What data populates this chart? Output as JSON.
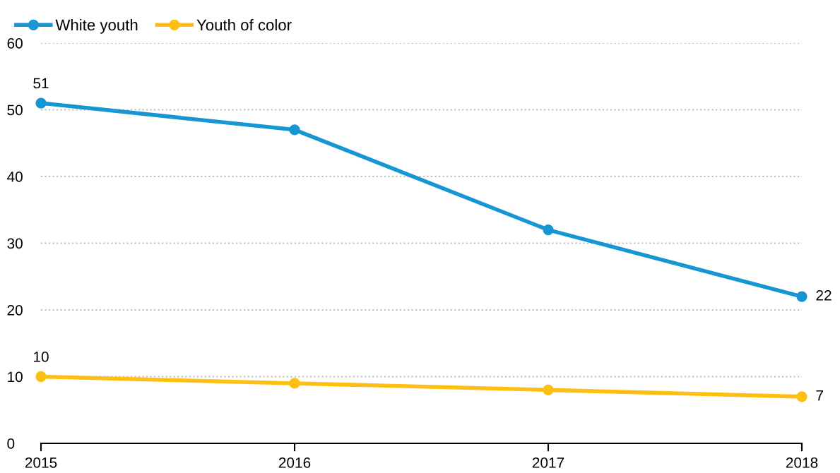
{
  "chart_data": {
    "type": "line",
    "categories": [
      "2015",
      "2016",
      "2017",
      "2018"
    ],
    "series": [
      {
        "name": "White youth",
        "color": "#1696d2",
        "values": [
          51,
          47,
          32,
          22
        ],
        "value_labels": [
          "51",
          null,
          null,
          "22"
        ]
      },
      {
        "name": "Youth of color",
        "color": "#fdbf11",
        "values": [
          10,
          9,
          8,
          7
        ],
        "value_labels": [
          "10",
          null,
          null,
          "7"
        ]
      }
    ],
    "ylim": [
      0,
      60
    ],
    "yticks": [
      0,
      10,
      20,
      30,
      40,
      50,
      60
    ],
    "grid": "y",
    "legend": "top left",
    "marker": "circle",
    "line_style": "solid"
  }
}
